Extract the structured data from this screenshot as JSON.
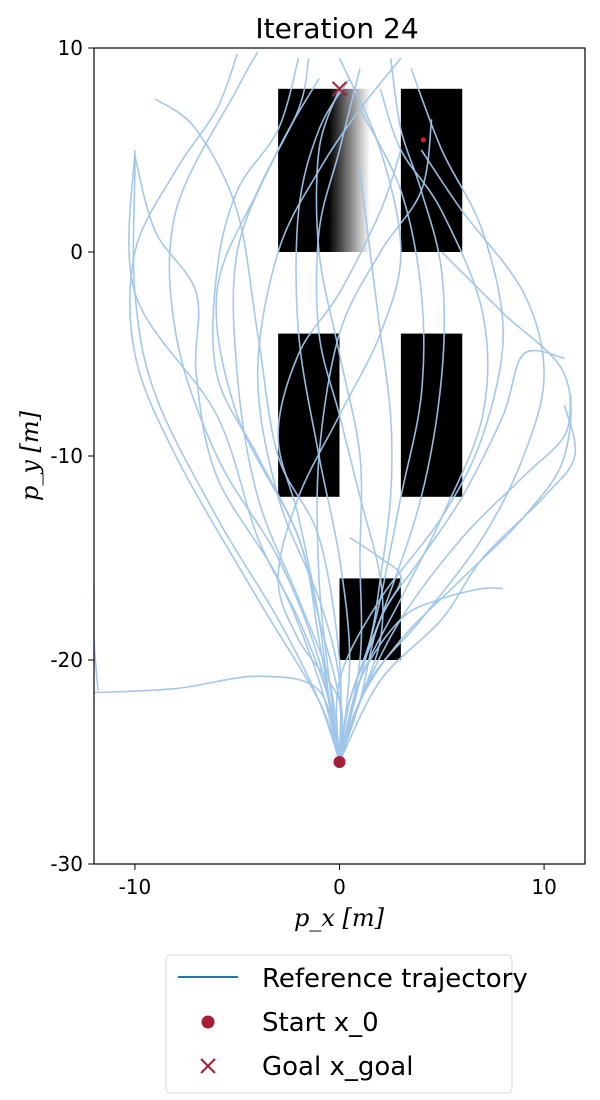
{
  "chart_data": {
    "type": "line",
    "title": "Iteration 24",
    "xlabel": "p_x [m]",
    "ylabel": "p_y [m]",
    "xlim": [
      -12,
      12
    ],
    "ylim": [
      -30,
      10
    ],
    "xticks": [
      -10,
      0,
      10
    ],
    "xtick_labels": [
      "-10",
      "0",
      "10"
    ],
    "yticks": [
      10,
      0,
      -10,
      -20,
      -30
    ],
    "ytick_labels": [
      "10",
      "0",
      "-10",
      "-20",
      "-30"
    ],
    "grid": false,
    "legend_position": "bottom-center, outside plot",
    "obstacles": [
      {
        "x": [
          -3,
          1.5
        ],
        "y": [
          0,
          8
        ],
        "soft_edge": true
      },
      {
        "x": [
          3,
          6
        ],
        "y": [
          0,
          8
        ]
      },
      {
        "x": [
          -3,
          0
        ],
        "y": [
          -12,
          -4
        ]
      },
      {
        "x": [
          3,
          6
        ],
        "y": [
          -12,
          -4
        ]
      },
      {
        "x": [
          0,
          3
        ],
        "y": [
          -20,
          -16
        ]
      }
    ],
    "start": {
      "x": 0,
      "y": -25
    },
    "goal": {
      "x": 0,
      "y": 8
    },
    "goal_secondary": {
      "x": 4.1,
      "y": 5.5
    },
    "series": [
      {
        "name": "Reference trajectory",
        "style": "line",
        "color": "#1f77b4"
      },
      {
        "name": "Start x_0",
        "style": "marker-dot",
        "color": "#a51f37"
      },
      {
        "name": "Goal x_goal",
        "style": "marker-x",
        "color": "#a51f37"
      }
    ],
    "trajectories": [
      [
        [
          0,
          -25
        ],
        [
          -1,
          -21.5
        ],
        [
          -4,
          -20.8
        ],
        [
          -8,
          -21.4
        ],
        [
          -12,
          -21.6
        ]
      ],
      [
        [
          -11.8,
          -21.5
        ],
        [
          -12,
          -19
        ],
        [
          -12,
          -16.5
        ]
      ],
      [
        [
          0,
          -25
        ],
        [
          -0.5,
          -22
        ],
        [
          -2,
          -18
        ],
        [
          -4,
          -14
        ],
        [
          -6,
          -8
        ],
        [
          -10,
          -2
        ],
        [
          -10,
          5
        ]
      ],
      [
        [
          0,
          -25
        ],
        [
          -1,
          -20
        ],
        [
          -3,
          -15
        ],
        [
          -6,
          -10
        ],
        [
          -8,
          -4
        ],
        [
          -8,
          2
        ],
        [
          -5,
          8
        ],
        [
          -4,
          9.8
        ]
      ],
      [
        [
          0,
          -25
        ],
        [
          -1,
          -19
        ],
        [
          -2,
          -14
        ],
        [
          -5,
          -8
        ],
        [
          -6,
          -2
        ],
        [
          -4,
          3
        ],
        [
          -2,
          7
        ],
        [
          -1.5,
          9.5
        ]
      ],
      [
        [
          0,
          -25
        ],
        [
          0,
          -20
        ],
        [
          -1,
          -14
        ],
        [
          -3,
          -10
        ],
        [
          -4,
          -4
        ],
        [
          -5,
          2
        ],
        [
          -7,
          6
        ],
        [
          -9,
          7.5
        ]
      ],
      [
        [
          0,
          -25
        ],
        [
          -1,
          -22
        ],
        [
          -3,
          -18
        ],
        [
          -6,
          -13
        ],
        [
          -9,
          -7
        ],
        [
          -10,
          -2
        ],
        [
          -10,
          4
        ],
        [
          -10,
          4.8
        ]
      ],
      [
        [
          0,
          -25
        ],
        [
          -0.5,
          -21
        ],
        [
          -2,
          -17
        ],
        [
          -4,
          -12
        ],
        [
          -5,
          -6
        ],
        [
          -5,
          0
        ],
        [
          -3,
          5
        ],
        [
          -1,
          8.5
        ]
      ],
      [
        [
          0,
          -25
        ],
        [
          0,
          -21
        ],
        [
          -1,
          -17
        ],
        [
          -3,
          -12
        ],
        [
          -4,
          -6
        ],
        [
          -3,
          0
        ],
        [
          -1,
          4
        ],
        [
          1,
          7
        ],
        [
          3,
          9.5
        ]
      ],
      [
        [
          0,
          -25
        ],
        [
          0.5,
          -20
        ],
        [
          0,
          -15
        ],
        [
          -1,
          -10
        ],
        [
          -2,
          -4
        ],
        [
          -2,
          2
        ],
        [
          -1,
          6
        ],
        [
          0.5,
          8.5
        ]
      ],
      [
        [
          0,
          -25
        ],
        [
          1,
          -20
        ],
        [
          1,
          -15
        ],
        [
          1,
          -10
        ],
        [
          0,
          -5
        ],
        [
          -1,
          0
        ],
        [
          -1,
          5
        ],
        [
          0,
          8
        ]
      ],
      [
        [
          0,
          -25
        ],
        [
          1,
          -21
        ],
        [
          2,
          -17
        ],
        [
          3,
          -12
        ],
        [
          4,
          -7
        ],
        [
          4,
          -2
        ],
        [
          3,
          3
        ],
        [
          1,
          7
        ]
      ],
      [
        [
          0,
          -25
        ],
        [
          1,
          -21
        ],
        [
          3,
          -17
        ],
        [
          5,
          -13
        ],
        [
          7,
          -8
        ],
        [
          7,
          -3
        ],
        [
          5,
          2
        ],
        [
          3,
          5
        ],
        [
          2,
          8
        ]
      ],
      [
        [
          0,
          -25
        ],
        [
          1.5,
          -21
        ],
        [
          4,
          -18
        ],
        [
          7,
          -14
        ],
        [
          9,
          -10
        ],
        [
          10,
          -6
        ],
        [
          9,
          -2
        ],
        [
          6,
          2
        ],
        [
          4,
          5
        ]
      ],
      [
        [
          0,
          -25
        ],
        [
          1,
          -22
        ],
        [
          3,
          -19
        ],
        [
          6,
          -16
        ],
        [
          9,
          -13
        ],
        [
          11,
          -10
        ],
        [
          11,
          -6
        ],
        [
          8,
          -3
        ],
        [
          5,
          0
        ]
      ],
      [
        [
          0,
          -25
        ],
        [
          1,
          -21
        ],
        [
          3,
          -18
        ],
        [
          5,
          -17
        ],
        [
          7,
          -16.5
        ],
        [
          8,
          -16.5
        ]
      ],
      [
        [
          0,
          -25
        ],
        [
          1,
          -22
        ],
        [
          2,
          -18
        ],
        [
          4,
          -15
        ],
        [
          6,
          -12
        ],
        [
          8,
          -8
        ],
        [
          9,
          -5
        ],
        [
          11,
          -5.2
        ]
      ],
      [
        [
          0,
          -25
        ],
        [
          2,
          -21
        ],
        [
          5,
          -18
        ],
        [
          7,
          -15
        ],
        [
          10,
          -12
        ],
        [
          11.5,
          -10
        ],
        [
          11,
          -7.5
        ]
      ],
      [
        [
          0,
          -25
        ],
        [
          1,
          -22
        ],
        [
          3,
          -18
        ],
        [
          6,
          -14
        ],
        [
          9,
          -11
        ],
        [
          11,
          -9
        ],
        [
          11.3,
          -7
        ]
      ],
      [
        [
          0,
          -25
        ],
        [
          0.5,
          -22
        ],
        [
          2,
          -18
        ],
        [
          4,
          -12
        ],
        [
          5,
          -6
        ],
        [
          5,
          -1
        ],
        [
          4,
          3
        ],
        [
          3,
          6
        ],
        [
          2.5,
          9.5
        ]
      ],
      [
        [
          0,
          -25
        ],
        [
          0,
          -22
        ],
        [
          -2,
          -19
        ],
        [
          -3,
          -16
        ],
        [
          -2,
          -12
        ],
        [
          0,
          -8
        ],
        [
          2,
          -4
        ],
        [
          3,
          0
        ],
        [
          2,
          5
        ],
        [
          0,
          9.5
        ]
      ],
      [
        [
          0,
          -25
        ],
        [
          -0.5,
          -21
        ],
        [
          -1,
          -16
        ],
        [
          -1,
          -10
        ],
        [
          0,
          -4
        ],
        [
          2,
          0
        ],
        [
          4,
          3
        ],
        [
          4.5,
          6.5
        ]
      ],
      [
        [
          0,
          -25
        ],
        [
          -1,
          -21
        ],
        [
          -3,
          -16
        ],
        [
          -6,
          -11
        ],
        [
          -7,
          -6
        ],
        [
          -7,
          -2
        ],
        [
          -9,
          1
        ],
        [
          -10,
          4.7
        ]
      ],
      [
        [
          0,
          -25
        ],
        [
          -1,
          -22
        ],
        [
          -4,
          -17
        ],
        [
          -8,
          -10
        ],
        [
          -10,
          -5
        ],
        [
          -10,
          0
        ],
        [
          -8,
          4
        ],
        [
          -6,
          7
        ],
        [
          -5,
          9.7
        ]
      ],
      [
        [
          0,
          -25
        ],
        [
          0,
          -21
        ],
        [
          2,
          -17
        ],
        [
          5,
          -13
        ],
        [
          7,
          -9
        ],
        [
          8,
          -4
        ],
        [
          7,
          1
        ],
        [
          5,
          5
        ],
        [
          3.5,
          9
        ]
      ],
      [
        [
          0,
          -25
        ],
        [
          0.5,
          -22
        ],
        [
          1.5,
          -19
        ],
        [
          2,
          -16
        ],
        [
          2.5,
          -12
        ],
        [
          2.5,
          -8
        ],
        [
          2,
          -4
        ],
        [
          1.5,
          0
        ],
        [
          1,
          4
        ]
      ],
      [
        [
          0,
          -25
        ],
        [
          0.5,
          -22
        ],
        [
          2,
          -18
        ],
        [
          3,
          -16
        ],
        [
          2,
          -15
        ],
        [
          0.5,
          -14
        ]
      ],
      [
        [
          0,
          -25
        ],
        [
          -0.5,
          -22
        ],
        [
          -1,
          -18
        ],
        [
          -2,
          -13
        ],
        [
          -3,
          -9
        ],
        [
          -2,
          -5
        ],
        [
          0,
          -2
        ],
        [
          2,
          2
        ],
        [
          3,
          5
        ]
      ],
      [
        [
          0,
          -25
        ],
        [
          0,
          -22
        ],
        [
          -1,
          -18
        ],
        [
          -2,
          -14
        ],
        [
          -4,
          -10
        ],
        [
          -6,
          -6
        ],
        [
          -6,
          -1
        ],
        [
          -5,
          3
        ],
        [
          -3,
          6
        ],
        [
          -2,
          9.5
        ]
      ],
      [
        [
          0,
          -25
        ],
        [
          1,
          -22
        ],
        [
          2,
          -19
        ],
        [
          2,
          -16
        ],
        [
          1,
          -12
        ],
        [
          0,
          -8
        ],
        [
          -1,
          -4
        ],
        [
          -1,
          1
        ],
        [
          0,
          5
        ],
        [
          1,
          9
        ]
      ]
    ]
  }
}
